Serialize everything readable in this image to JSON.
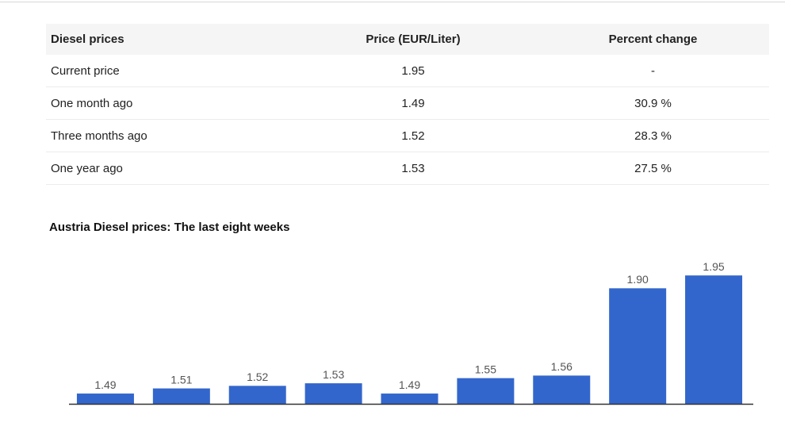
{
  "table": {
    "header": [
      "Diesel prices",
      "Price (EUR/Liter)",
      "Percent change"
    ],
    "rows": [
      [
        "Current price",
        "1.95",
        "-"
      ],
      [
        "One month ago",
        "1.49",
        "30.9 %"
      ],
      [
        "Three months ago",
        "1.52",
        "28.3 %"
      ],
      [
        "One year ago",
        "1.53",
        "27.5 %"
      ]
    ]
  },
  "chart_data": {
    "type": "bar",
    "title": "Austria Diesel prices: The last eight weeks",
    "categories": [
      null,
      null,
      null,
      null,
      null,
      null,
      null,
      null,
      null
    ],
    "values": [
      1.49,
      1.51,
      1.52,
      1.53,
      1.49,
      1.55,
      1.56,
      1.9,
      1.95
    ],
    "value_labels": [
      "1.49",
      "1.51",
      "1.52",
      "1.53",
      "1.49",
      "1.55",
      "1.56",
      "1.90",
      "1.95"
    ],
    "color": "#3366cc",
    "ylim": [
      1.45,
      2.0
    ]
  }
}
